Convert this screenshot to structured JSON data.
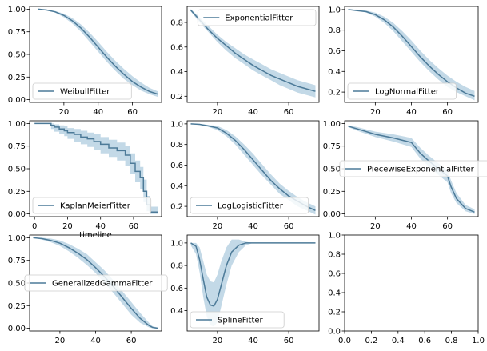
{
  "figure": {
    "line_color": "#4c7a98",
    "band_color": "#b8d2e3",
    "legend_line_color": "#4c7a98"
  },
  "chart_data": [
    {
      "type": "line",
      "legend": "WeibullFitter",
      "legend_loc": "lower-left",
      "xlim": [
        0,
        77
      ],
      "ylim": [
        -0.03,
        1.03
      ],
      "xticks": [
        20,
        40,
        60
      ],
      "xtick_labels": [
        "20",
        "40",
        "60"
      ],
      "yticks": [
        0,
        0.25,
        0.5,
        0.75,
        1.0
      ],
      "ytick_labels": [
        "0.00",
        "0.25",
        "0.50",
        "0.75",
        "1.00"
      ],
      "x": [
        5,
        10,
        15,
        20,
        25,
        30,
        35,
        40,
        45,
        50,
        55,
        60,
        65,
        70,
        75
      ],
      "y": [
        1.0,
        0.99,
        0.97,
        0.93,
        0.87,
        0.79,
        0.69,
        0.58,
        0.47,
        0.37,
        0.28,
        0.2,
        0.14,
        0.09,
        0.06
      ],
      "lower": [
        1.0,
        0.99,
        0.96,
        0.91,
        0.84,
        0.75,
        0.64,
        0.53,
        0.42,
        0.32,
        0.23,
        0.16,
        0.1,
        0.06,
        0.03
      ],
      "upper": [
        1.0,
        0.995,
        0.98,
        0.95,
        0.9,
        0.83,
        0.74,
        0.64,
        0.53,
        0.43,
        0.34,
        0.26,
        0.19,
        0.13,
        0.09
      ]
    },
    {
      "type": "line",
      "legend": "ExponentialFitter",
      "legend_loc": "upper-right",
      "xlim": [
        3,
        77
      ],
      "ylim": [
        0.15,
        0.93
      ],
      "xticks": [
        20,
        40,
        60
      ],
      "xtick_labels": [
        "20",
        "40",
        "60"
      ],
      "yticks": [
        0.2,
        0.4,
        0.6,
        0.8
      ],
      "ytick_labels": [
        "0.2",
        "0.4",
        "0.6",
        "0.8"
      ],
      "x": [
        5,
        10,
        15,
        20,
        25,
        30,
        35,
        40,
        45,
        50,
        55,
        60,
        65,
        70,
        75
      ],
      "y": [
        0.9,
        0.82,
        0.74,
        0.67,
        0.61,
        0.55,
        0.5,
        0.45,
        0.41,
        0.37,
        0.34,
        0.31,
        0.28,
        0.26,
        0.24
      ],
      "lower": [
        0.89,
        0.8,
        0.72,
        0.64,
        0.57,
        0.51,
        0.46,
        0.41,
        0.37,
        0.33,
        0.29,
        0.26,
        0.23,
        0.21,
        0.19
      ],
      "upper": [
        0.91,
        0.84,
        0.77,
        0.7,
        0.64,
        0.59,
        0.54,
        0.5,
        0.46,
        0.42,
        0.39,
        0.36,
        0.33,
        0.31,
        0.29
      ]
    },
    {
      "type": "line",
      "legend": "LogNormalFitter",
      "legend_loc": "lower-left",
      "xlim": [
        3,
        77
      ],
      "ylim": [
        0.1,
        1.03
      ],
      "xticks": [
        20,
        40,
        60
      ],
      "xtick_labels": [
        "20",
        "40",
        "60"
      ],
      "yticks": [
        0.2,
        0.4,
        0.6,
        0.8,
        1.0
      ],
      "ytick_labels": [
        "0.2",
        "0.4",
        "0.6",
        "0.8",
        "1.0"
      ],
      "x": [
        5,
        10,
        15,
        20,
        25,
        30,
        35,
        40,
        45,
        50,
        55,
        60,
        65,
        70,
        75
      ],
      "y": [
        1.0,
        0.99,
        0.98,
        0.95,
        0.9,
        0.83,
        0.74,
        0.64,
        0.54,
        0.45,
        0.37,
        0.3,
        0.24,
        0.19,
        0.16
      ],
      "lower": [
        1.0,
        0.99,
        0.97,
        0.93,
        0.87,
        0.79,
        0.69,
        0.59,
        0.49,
        0.4,
        0.32,
        0.25,
        0.2,
        0.16,
        0.12
      ],
      "upper": [
        1.0,
        1.0,
        0.99,
        0.97,
        0.93,
        0.87,
        0.79,
        0.7,
        0.6,
        0.51,
        0.43,
        0.36,
        0.3,
        0.25,
        0.21
      ]
    },
    {
      "type": "line",
      "legend": "KaplanMeierFitter",
      "legend_loc": "lower-left",
      "step": true,
      "xlim": [
        -3,
        77
      ],
      "ylim": [
        -0.03,
        1.03
      ],
      "xticks": [
        0,
        20,
        40,
        60
      ],
      "xtick_labels": [
        "0",
        "20",
        "40",
        "60"
      ],
      "yticks": [
        0,
        0.25,
        0.5,
        0.75,
        1.0
      ],
      "ytick_labels": [
        "0.00",
        "0.25",
        "0.50",
        "0.75",
        "1.00"
      ],
      "xlabel": "timeline",
      "x": [
        0,
        10,
        12,
        15,
        18,
        20,
        24,
        28,
        32,
        36,
        40,
        45,
        50,
        55,
        58,
        61,
        64,
        66,
        68,
        70,
        75
      ],
      "y": [
        1.0,
        0.98,
        0.96,
        0.94,
        0.92,
        0.9,
        0.88,
        0.85,
        0.83,
        0.8,
        0.77,
        0.73,
        0.7,
        0.65,
        0.56,
        0.47,
        0.4,
        0.25,
        0.1,
        0.02,
        0.02
      ],
      "lower": [
        1.0,
        0.94,
        0.91,
        0.88,
        0.86,
        0.83,
        0.8,
        0.77,
        0.74,
        0.71,
        0.67,
        0.63,
        0.59,
        0.53,
        0.44,
        0.35,
        0.27,
        0.13,
        0.03,
        0.0,
        0.0
      ],
      "upper": [
        1.0,
        1.0,
        0.99,
        0.98,
        0.97,
        0.95,
        0.94,
        0.92,
        0.9,
        0.88,
        0.85,
        0.82,
        0.79,
        0.75,
        0.67,
        0.59,
        0.52,
        0.38,
        0.2,
        0.08,
        0.08
      ]
    },
    {
      "type": "line",
      "legend": "LogLogisticFitter",
      "legend_loc": "lower-left",
      "xlim": [
        3,
        77
      ],
      "ylim": [
        0.1,
        1.03
      ],
      "xticks": [
        20,
        40,
        60
      ],
      "xtick_labels": [
        "20",
        "40",
        "60"
      ],
      "yticks": [
        0.2,
        0.4,
        0.6,
        0.8,
        1.0
      ],
      "ytick_labels": [
        "0.2",
        "0.4",
        "0.6",
        "0.8",
        "1.0"
      ],
      "x": [
        5,
        10,
        15,
        20,
        25,
        30,
        35,
        40,
        45,
        50,
        55,
        60,
        65,
        70,
        75
      ],
      "y": [
        1.0,
        0.995,
        0.98,
        0.96,
        0.91,
        0.84,
        0.75,
        0.65,
        0.55,
        0.45,
        0.37,
        0.3,
        0.25,
        0.2,
        0.16
      ],
      "lower": [
        1.0,
        0.99,
        0.97,
        0.94,
        0.88,
        0.8,
        0.7,
        0.6,
        0.5,
        0.41,
        0.32,
        0.26,
        0.2,
        0.16,
        0.12
      ],
      "upper": [
        1.0,
        1.0,
        0.99,
        0.98,
        0.94,
        0.88,
        0.8,
        0.71,
        0.61,
        0.51,
        0.42,
        0.35,
        0.29,
        0.24,
        0.2
      ]
    },
    {
      "type": "line",
      "legend": "PiecewiseExponentialFitter",
      "legend_loc": "center-left",
      "xlim": [
        3,
        77
      ],
      "ylim": [
        -0.03,
        1.03
      ],
      "xticks": [
        20,
        40,
        60
      ],
      "xtick_labels": [
        "20",
        "40",
        "60"
      ],
      "yticks": [
        0,
        0.25,
        0.5,
        0.75,
        1.0
      ],
      "ytick_labels": [
        "0.00",
        "0.25",
        "0.50",
        "0.75",
        "1.00"
      ],
      "x": [
        5,
        10,
        20,
        30,
        40,
        45,
        50,
        55,
        60,
        62,
        65,
        70,
        75
      ],
      "y": [
        0.97,
        0.94,
        0.88,
        0.84,
        0.79,
        0.67,
        0.58,
        0.5,
        0.42,
        0.3,
        0.17,
        0.06,
        0.02
      ],
      "lower": [
        0.96,
        0.92,
        0.85,
        0.8,
        0.74,
        0.61,
        0.52,
        0.43,
        0.35,
        0.23,
        0.12,
        0.03,
        0.0
      ],
      "upper": [
        0.98,
        0.96,
        0.91,
        0.88,
        0.84,
        0.73,
        0.64,
        0.56,
        0.48,
        0.37,
        0.23,
        0.1,
        0.05
      ]
    },
    {
      "type": "line",
      "legend": "GeneralizedGammaFitter",
      "legend_loc": "center-left",
      "xlim": [
        3,
        77
      ],
      "ylim": [
        -0.03,
        1.03
      ],
      "xticks": [
        20,
        40,
        60
      ],
      "xtick_labels": [
        "20",
        "40",
        "60"
      ],
      "yticks": [
        0,
        0.25,
        0.5,
        0.75,
        1.0
      ],
      "ytick_labels": [
        "0.00",
        "0.25",
        "0.50",
        "0.75",
        "1.00"
      ],
      "x": [
        5,
        10,
        15,
        20,
        25,
        30,
        35,
        40,
        45,
        50,
        55,
        60,
        65,
        70,
        72,
        75
      ],
      "y": [
        1.0,
        0.99,
        0.97,
        0.94,
        0.89,
        0.83,
        0.76,
        0.67,
        0.57,
        0.46,
        0.34,
        0.22,
        0.11,
        0.03,
        0.01,
        0.0
      ],
      "lower": [
        1.0,
        0.98,
        0.95,
        0.91,
        0.85,
        0.78,
        0.7,
        0.61,
        0.5,
        0.39,
        0.27,
        0.15,
        0.06,
        0.01,
        0.0,
        0.0
      ],
      "upper": [
        1.0,
        1.0,
        0.99,
        0.97,
        0.93,
        0.88,
        0.82,
        0.73,
        0.64,
        0.53,
        0.41,
        0.29,
        0.17,
        0.06,
        0.02,
        0.01
      ]
    },
    {
      "type": "line",
      "legend": "SplineFitter",
      "legend_loc": "lower-left",
      "xlim": [
        3,
        77
      ],
      "ylim": [
        0.22,
        1.07
      ],
      "xticks": [
        20,
        40,
        60
      ],
      "xtick_labels": [
        "20",
        "40",
        "60"
      ],
      "yticks": [
        0.4,
        0.6,
        0.8,
        1.0
      ],
      "ytick_labels": [
        "0.4",
        "0.6",
        "0.8",
        "1.0"
      ],
      "x": [
        5,
        8,
        10,
        12,
        14,
        16,
        18,
        20,
        22,
        25,
        28,
        32,
        36,
        40,
        50,
        60,
        75
      ],
      "y": [
        1.0,
        0.97,
        0.85,
        0.68,
        0.52,
        0.45,
        0.44,
        0.5,
        0.62,
        0.8,
        0.92,
        0.98,
        1.0,
        1.0,
        1.0,
        1.0,
        1.0
      ],
      "lower": [
        0.98,
        0.9,
        0.74,
        0.52,
        0.35,
        0.27,
        0.26,
        0.3,
        0.43,
        0.63,
        0.8,
        0.92,
        0.98,
        1.0,
        1.0,
        1.0,
        1.0
      ],
      "upper": [
        1.0,
        1.0,
        0.96,
        0.84,
        0.72,
        0.66,
        0.65,
        0.72,
        0.83,
        0.96,
        1.03,
        1.03,
        1.01,
        1.0,
        1.0,
        1.0,
        1.0
      ]
    },
    {
      "type": "line",
      "empty": true,
      "xlim": [
        0,
        1
      ],
      "ylim": [
        0,
        1
      ],
      "xticks": [
        0,
        0.2,
        0.4,
        0.6,
        0.8,
        1.0
      ],
      "xtick_labels": [
        "0.0",
        "0.2",
        "0.4",
        "0.6",
        "0.8",
        "1.0"
      ],
      "yticks": [
        0,
        0.2,
        0.4,
        0.6,
        0.8,
        1.0
      ],
      "ytick_labels": [
        "0.0",
        "0.2",
        "0.4",
        "0.6",
        "0.8",
        "1.0"
      ]
    }
  ]
}
